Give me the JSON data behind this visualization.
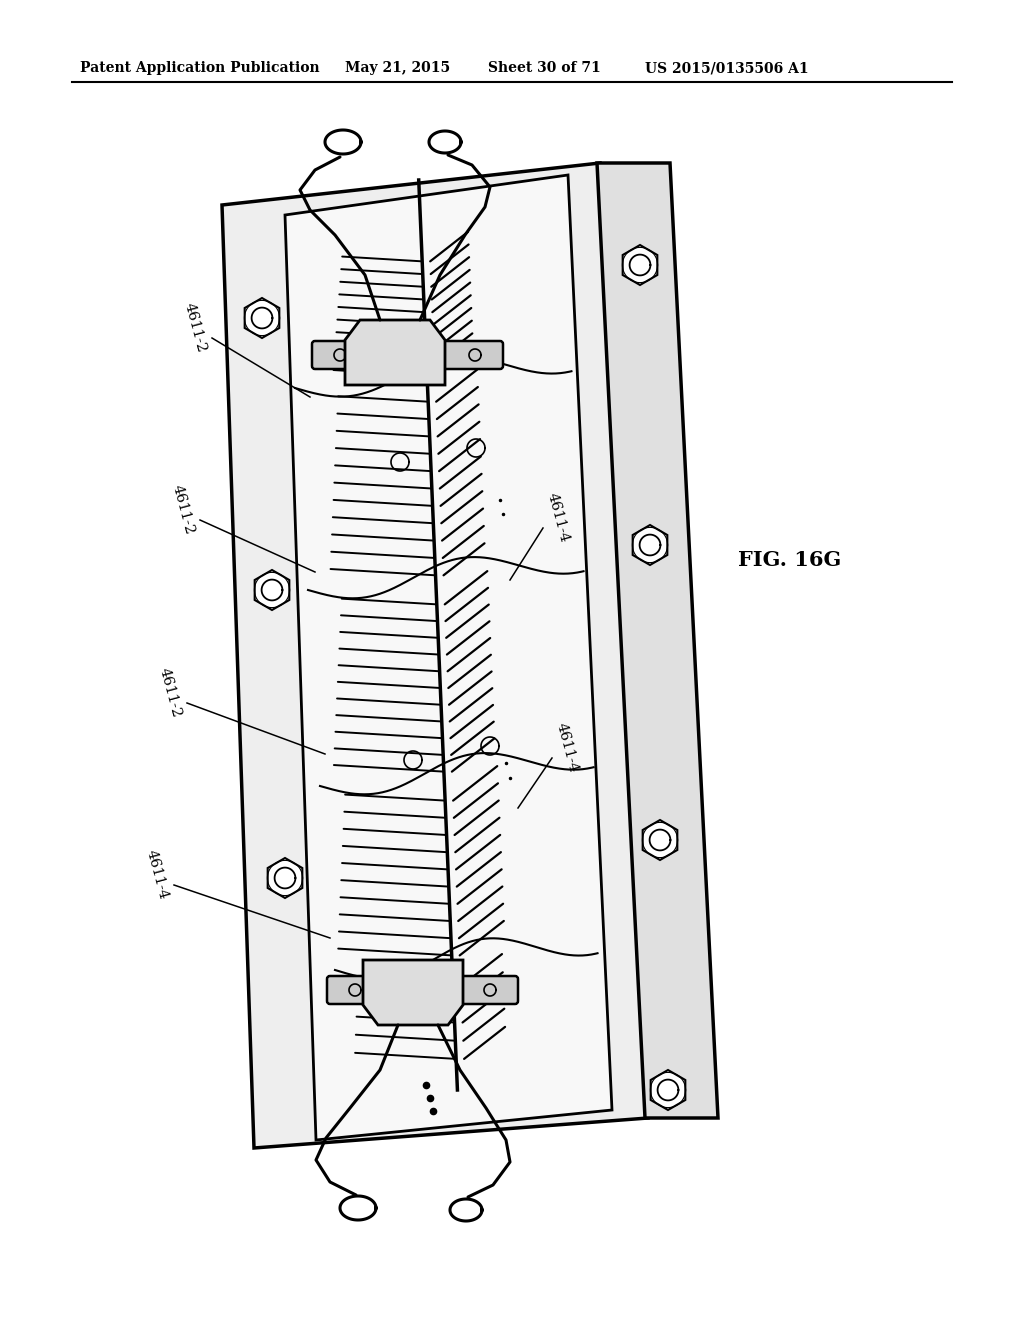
{
  "background_color": "#ffffff",
  "header_text": "Patent Application Publication",
  "header_date": "May 21, 2015",
  "header_sheet": "Sheet 30 of 71",
  "header_patent": "US 2015/0135506 A1",
  "figure_label": "FIG. 16G",
  "plate_color": "#f5f5f5",
  "plate_edge_color": "#000000",
  "line_color": "#000000"
}
